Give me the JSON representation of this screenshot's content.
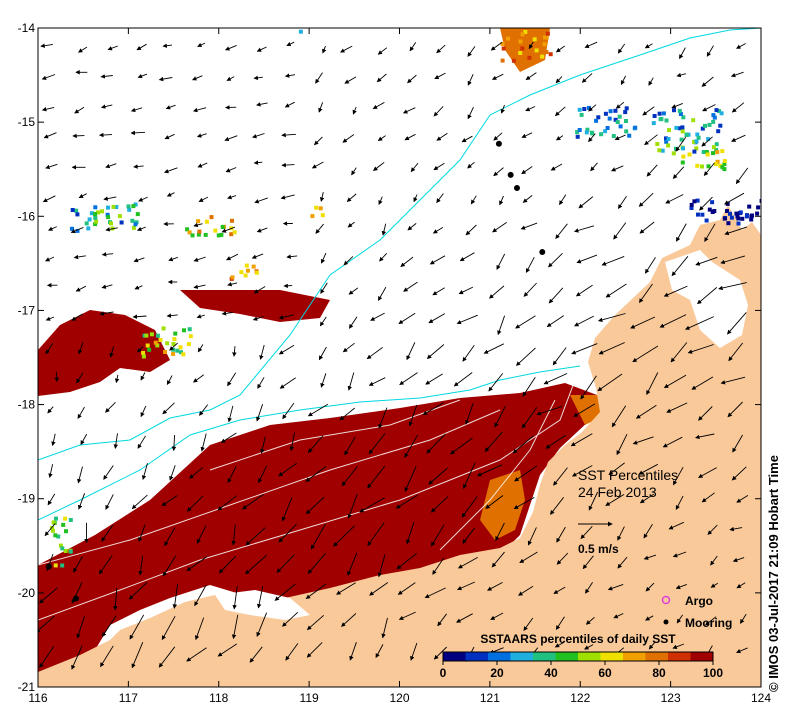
{
  "map": {
    "title": "SST Percentiles",
    "date": "24 Feb 2013",
    "scale_label": "0.5 m/s",
    "credit": "© IMOS 03-Jul-2017 21:09 Hobart Time",
    "x_axis": {
      "ticks": [
        "116",
        "117",
        "118",
        "119",
        "120",
        "121",
        "122",
        "123",
        "124"
      ],
      "range": [
        116,
        124
      ]
    },
    "y_axis": {
      "ticks": [
        "-14",
        "-15",
        "-16",
        "-17",
        "-18",
        "-19",
        "-20",
        "-21"
      ],
      "range": [
        -21,
        -14
      ]
    },
    "legend": {
      "argo_label": "Argo",
      "mooring_label": "Mooring",
      "colorbar_title": "SSTAARS percentiles of daily SST",
      "colorbar_ticks": [
        "0",
        "20",
        "40",
        "60",
        "80",
        "100"
      ],
      "colorbar_colors": [
        "#000080",
        "#0030c0",
        "#0070e0",
        "#20b0e0",
        "#20c080",
        "#20c020",
        "#a0e000",
        "#f0e000",
        "#f0a000",
        "#e07000",
        "#d03000",
        "#a00000"
      ]
    },
    "colors": {
      "land": "#f9c99a",
      "ocean": "#ffffff",
      "warm_anomaly": "#a00000",
      "isobath": "#00d8e0",
      "mooring": "#000000",
      "argo": "#e040e0"
    },
    "moorings": [
      {
        "lon": 121.1,
        "lat": -15.23
      },
      {
        "lon": 121.23,
        "lat": -15.56
      },
      {
        "lon": 121.3,
        "lat": -15.7
      },
      {
        "lon": 121.58,
        "lat": -16.38
      },
      {
        "lon": 116.12,
        "lat": -19.72
      },
      {
        "lon": 116.42,
        "lat": -20.06
      }
    ]
  }
}
